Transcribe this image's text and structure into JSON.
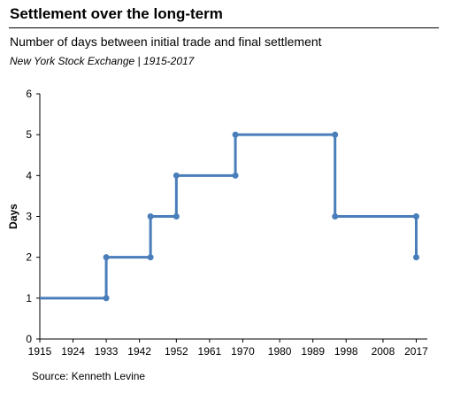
{
  "title": "Settlement over the long-term",
  "subtitle": "Number of days between initial trade and final settlement",
  "subsubtitle": "New York Stock Exchange | 1915-2017",
  "source": "Source: Kenneth Levine",
  "chart_data": {
    "type": "line",
    "step": true,
    "x": [
      1915,
      1933,
      1933,
      1945,
      1945,
      1952,
      1952,
      1968,
      1968,
      1995,
      1995,
      2017,
      2017
    ],
    "y": [
      1,
      1,
      2,
      2,
      3,
      3,
      4,
      4,
      5,
      5,
      3,
      3,
      2
    ],
    "markers_x": [
      1933,
      1933,
      1945,
      1945,
      1952,
      1952,
      1968,
      1968,
      1995,
      1995,
      2017,
      2017
    ],
    "markers_y": [
      1,
      2,
      2,
      3,
      3,
      4,
      4,
      5,
      5,
      3,
      3,
      2
    ],
    "xlabel": "",
    "ylabel": "Days",
    "xlim": [
      1915,
      2020
    ],
    "ylim": [
      0,
      6
    ],
    "xticks": [
      1915,
      1924,
      1933,
      1942,
      1952,
      1961,
      1970,
      1980,
      1989,
      1998,
      2008,
      2017
    ],
    "yticks": [
      0,
      1,
      2,
      3,
      4,
      5,
      6
    ],
    "color": "#4a7ebb",
    "grid": false
  }
}
